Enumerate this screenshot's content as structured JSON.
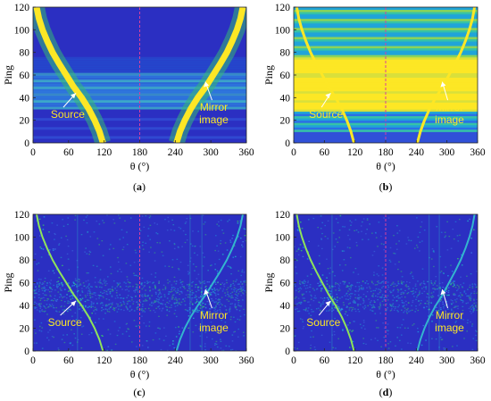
{
  "chart_data": [
    {
      "type": "heatmap",
      "panel_label": "a",
      "xlabel": "θ (°)",
      "ylabel": "Ping",
      "xlim": [
        0,
        360
      ],
      "ylim": [
        0,
        120
      ],
      "xticks": [
        0,
        60,
        120,
        180,
        240,
        300,
        360
      ],
      "yticks": [
        0,
        20,
        40,
        60,
        80,
        100,
        120
      ],
      "reference_line_x": 180,
      "source_curve": {
        "ping": [
          0,
          10,
          20,
          30,
          40,
          50,
          60,
          70,
          80,
          90,
          100,
          110,
          120
        ],
        "theta": [
          118,
          112,
          104,
          94,
          82,
          68,
          56,
          44,
          33,
          24,
          16,
          10,
          6
        ]
      },
      "mirror_curve": {
        "ping": [
          0,
          10,
          20,
          30,
          40,
          50,
          60,
          70,
          80,
          90,
          100,
          110,
          120
        ],
        "theta": [
          242,
          248,
          256,
          266,
          278,
          292,
          304,
          316,
          327,
          336,
          344,
          350,
          354
        ]
      },
      "annotations": [
        {
          "text": "Source",
          "x": 30,
          "y": 22
        },
        {
          "text": "Mirror image",
          "x": 305,
          "y": 22
        }
      ]
    },
    {
      "type": "heatmap",
      "panel_label": "b",
      "xlabel": "θ (°)",
      "ylabel": "Ping",
      "xlim": [
        0,
        360
      ],
      "ylim": [
        0,
        120
      ],
      "xticks": [
        0,
        60,
        120,
        180,
        240,
        300,
        360
      ],
      "yticks": [
        0,
        20,
        40,
        60,
        80,
        100,
        120
      ],
      "reference_line_x": 180,
      "source_curve": {
        "ping": [
          0,
          10,
          20,
          30,
          40,
          50,
          60,
          70,
          80,
          90,
          100,
          110,
          120
        ],
        "theta": [
          118,
          112,
          104,
          94,
          82,
          68,
          56,
          44,
          33,
          24,
          16,
          10,
          6
        ]
      },
      "mirror_curve": {
        "ping": [
          0,
          10,
          20,
          30,
          40,
          50,
          60,
          70,
          80,
          90,
          100,
          110,
          120
        ],
        "theta": [
          242,
          248,
          256,
          266,
          278,
          292,
          304,
          316,
          327,
          336,
          344,
          350,
          354
        ]
      },
      "annotations": [
        {
          "text": "Source",
          "x": 30,
          "y": 22
        },
        {
          "text": "Mirror image",
          "x": 305,
          "y": 22
        }
      ]
    },
    {
      "type": "heatmap",
      "panel_label": "c",
      "xlabel": "θ (°)",
      "ylabel": "Ping",
      "xlim": [
        0,
        360
      ],
      "ylim": [
        0,
        120
      ],
      "xticks": [
        0,
        60,
        120,
        180,
        240,
        300,
        360
      ],
      "yticks": [
        0,
        20,
        40,
        60,
        80,
        100,
        120
      ],
      "reference_line_x": 180,
      "source_curve": {
        "ping": [
          0,
          10,
          20,
          30,
          40,
          50,
          60,
          70,
          80,
          90,
          100,
          110,
          120
        ],
        "theta": [
          118,
          112,
          104,
          94,
          82,
          68,
          56,
          44,
          33,
          24,
          16,
          10,
          6
        ]
      },
      "mirror_curve": {
        "ping": [
          0,
          10,
          20,
          30,
          40,
          50,
          60,
          70,
          80,
          90,
          100,
          110,
          120
        ],
        "theta": [
          242,
          248,
          256,
          266,
          278,
          292,
          304,
          316,
          327,
          336,
          344,
          350,
          354
        ]
      },
      "annotations": [
        {
          "text": "Source",
          "x": 25,
          "y": 22
        },
        {
          "text": "Mirror image",
          "x": 305,
          "y": 22
        }
      ]
    },
    {
      "type": "heatmap",
      "panel_label": "d",
      "xlabel": "θ (°)",
      "ylabel": "Ping",
      "xlim": [
        0,
        360
      ],
      "ylim": [
        0,
        120
      ],
      "xticks": [
        0,
        60,
        120,
        180,
        240,
        300,
        360
      ],
      "yticks": [
        0,
        20,
        40,
        60,
        80,
        100,
        120
      ],
      "reference_line_x": 180,
      "source_curve": {
        "ping": [
          0,
          10,
          20,
          30,
          40,
          50,
          60,
          70,
          80,
          90,
          100,
          110,
          120
        ],
        "theta": [
          118,
          112,
          104,
          94,
          82,
          68,
          56,
          44,
          33,
          24,
          16,
          10,
          6
        ]
      },
      "mirror_curve": {
        "ping": [
          0,
          10,
          20,
          30,
          40,
          50,
          60,
          70,
          80,
          90,
          100,
          110,
          120
        ],
        "theta": [
          242,
          248,
          256,
          266,
          278,
          292,
          304,
          316,
          327,
          336,
          344,
          350,
          354
        ]
      },
      "annotations": [
        {
          "text": "Source",
          "x": 25,
          "y": 22
        },
        {
          "text": "Mirror image",
          "x": 305,
          "y": 22
        }
      ]
    }
  ],
  "captions": [
    "(a)",
    "(b)",
    "(c)",
    "(d)"
  ],
  "colors": {
    "background_low": "#2b2fc2",
    "background_mid": "#1f8fe0",
    "highlight": "#fde725",
    "reference_line": "#d6409f",
    "annotation_text": "#fde725"
  }
}
